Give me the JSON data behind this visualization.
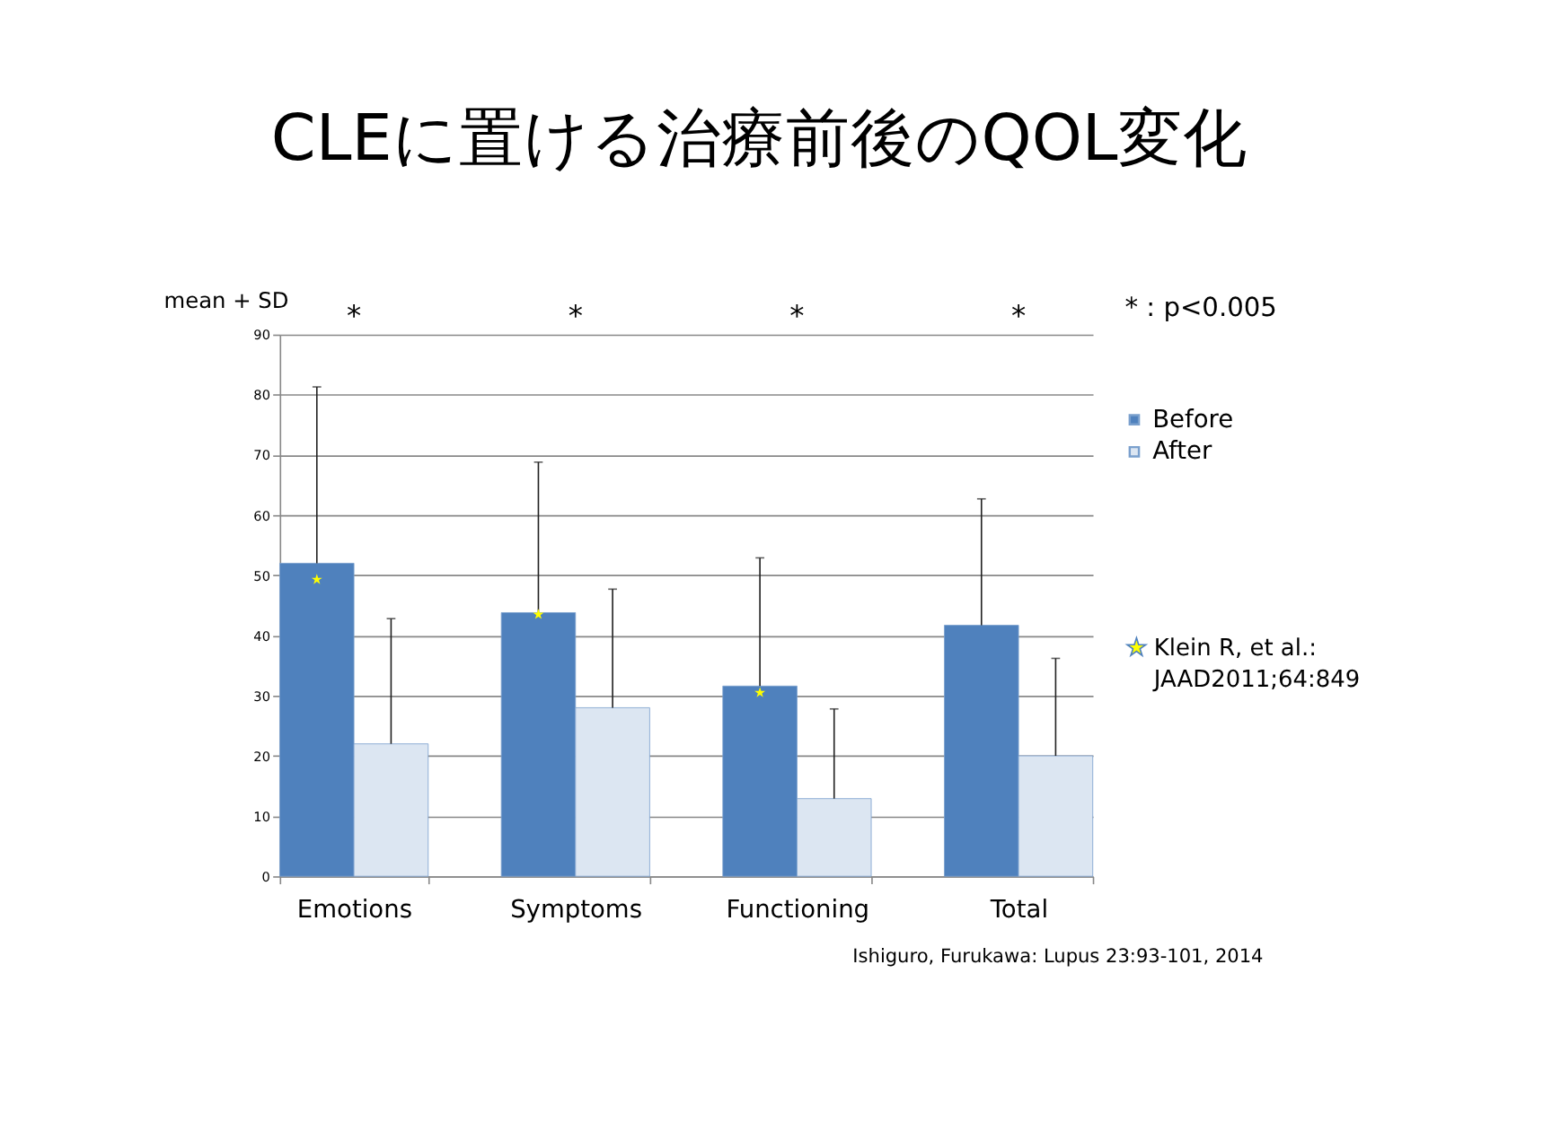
{
  "chart_data": {
    "type": "bar",
    "title": "CLEに置ける治療前後のQOL変化",
    "ylabel": "mean + SD",
    "categories": [
      "Emotions",
      "Symptoms",
      "Functioning",
      "Total"
    ],
    "series": [
      {
        "name": "Before",
        "color": "#4f81bd",
        "values": [
          52,
          43.8,
          31.6,
          41.7
        ],
        "errors": [
          [
            52,
            81.3
          ],
          [
            43.8,
            68.8
          ],
          [
            31.6,
            52.9
          ],
          [
            41.7,
            62.7
          ]
        ]
      },
      {
        "name": "After",
        "color": "#dce6f2",
        "values": [
          22,
          28,
          12.9,
          20
        ],
        "errors": [
          [
            22,
            42.8
          ],
          [
            28,
            47.7
          ],
          [
            12.9,
            27.8
          ],
          [
            20,
            36.2
          ]
        ]
      },
      {
        "name": "Klein R, et al.: JAAD2011;64:849",
        "type": "scatter",
        "color": "#ffff00",
        "x": [
          "Emotions",
          "Symptoms",
          "Functioning"
        ],
        "values": [
          49.3,
          43.5,
          30.5
        ]
      }
    ],
    "marker": "star",
    "ylim": [
      0,
      90
    ],
    "yticks": [
      0,
      10,
      20,
      30,
      40,
      50,
      60,
      70,
      80,
      90
    ],
    "grid": "y",
    "legend": "top right",
    "annotations": [
      "*",
      "*",
      "*",
      "*",
      "*  : p<0.005",
      "Ishiguro, Furukawa: Lupus 23:93-101, 2014"
    ]
  }
}
